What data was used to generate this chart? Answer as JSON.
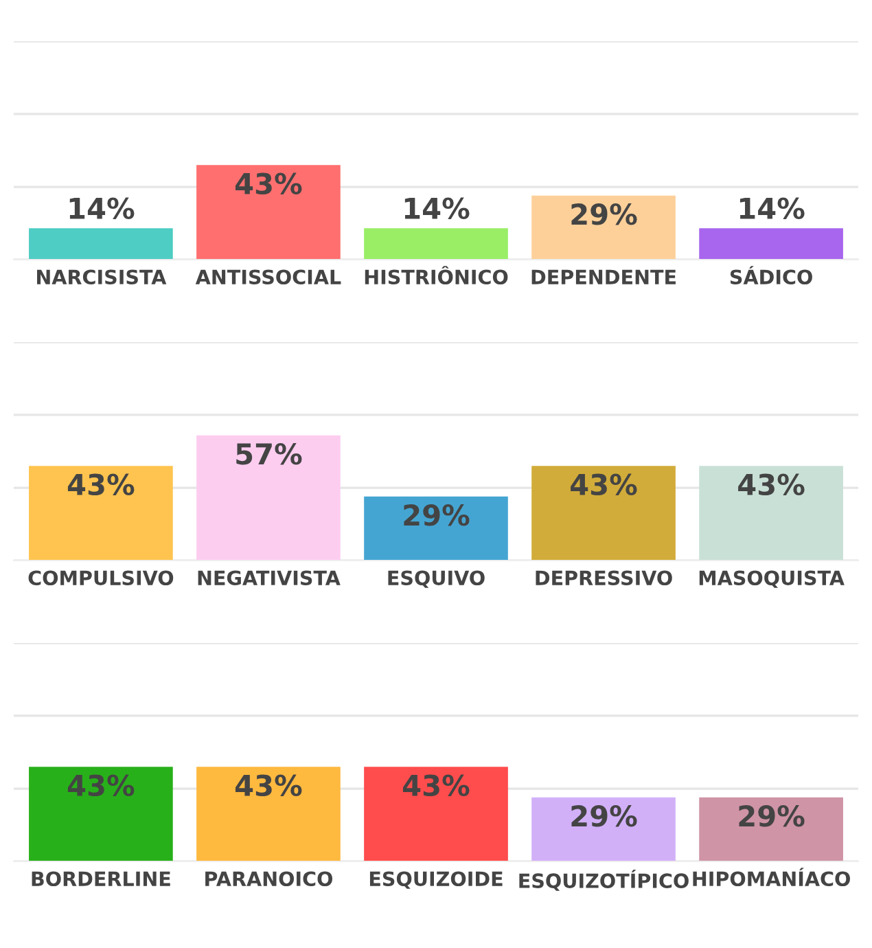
{
  "chart_data": [
    {
      "type": "bar",
      "categories": [
        "NARCISISTA",
        "ANTISSOCIAL",
        "HISTRIÔNICO",
        "DEPENDENTE",
        "SÁDICO"
      ],
      "values": [
        14,
        43,
        14,
        29,
        14
      ],
      "value_labels": [
        "14%",
        "43%",
        "14%",
        "29%",
        "14%"
      ],
      "colors": [
        "#4ecdc4",
        "#ff6f6f",
        "#99ee66",
        "#fdd09a",
        "#a866ee"
      ],
      "ylim": [
        0,
        100
      ],
      "yticks": [
        {
          "value": 0,
          "label": null
        },
        {
          "value": 33.3,
          "label": null
        },
        {
          "value": 66.7,
          "label": null
        },
        {
          "value": 100,
          "label": null
        }
      ],
      "grid": "y",
      "tick_labels": "x"
    },
    {
      "type": "bar",
      "categories": [
        "COMPULSIVO",
        "NEGATIVISTA",
        "ESQUIVO",
        "DEPRESSIVO",
        "MASOQUISTA"
      ],
      "values": [
        43,
        57,
        29,
        43,
        43
      ],
      "value_labels": [
        "43%",
        "57%",
        "29%",
        "43%",
        "43%"
      ],
      "colors": [
        "#fec44f",
        "#fdcdf0",
        "#45a5d2",
        "#d2ac3a",
        "#c9e0d6"
      ],
      "ylim": [
        0,
        100
      ],
      "yticks": [
        {
          "value": 0,
          "label": null
        },
        {
          "value": 33.3,
          "label": null
        },
        {
          "value": 66.7,
          "label": null
        },
        {
          "value": 100,
          "label": null
        }
      ],
      "grid": "y",
      "tick_labels": "x"
    },
    {
      "type": "bar",
      "categories": [
        "BORDERLINE",
        "PARANOICO",
        "ESQUIZOIDE",
        "ESQUIZOTÍPICO",
        "HIPOMANÍACO"
      ],
      "values": [
        43,
        43,
        43,
        29,
        29
      ],
      "value_labels": [
        "43%",
        "43%",
        "43%",
        "29%",
        "29%"
      ],
      "colors": [
        "#28b01a",
        "#feb93f",
        "#ff4c4c",
        "#d2b0f8",
        "#cf94a6"
      ],
      "ylim": [
        0,
        100
      ],
      "yticks": [
        {
          "value": 0,
          "label": null
        },
        {
          "value": 33.3,
          "label": null
        },
        {
          "value": 66.7,
          "label": null
        },
        {
          "value": 100,
          "label": null
        }
      ],
      "grid": "y",
      "tick_labels": "x"
    }
  ]
}
